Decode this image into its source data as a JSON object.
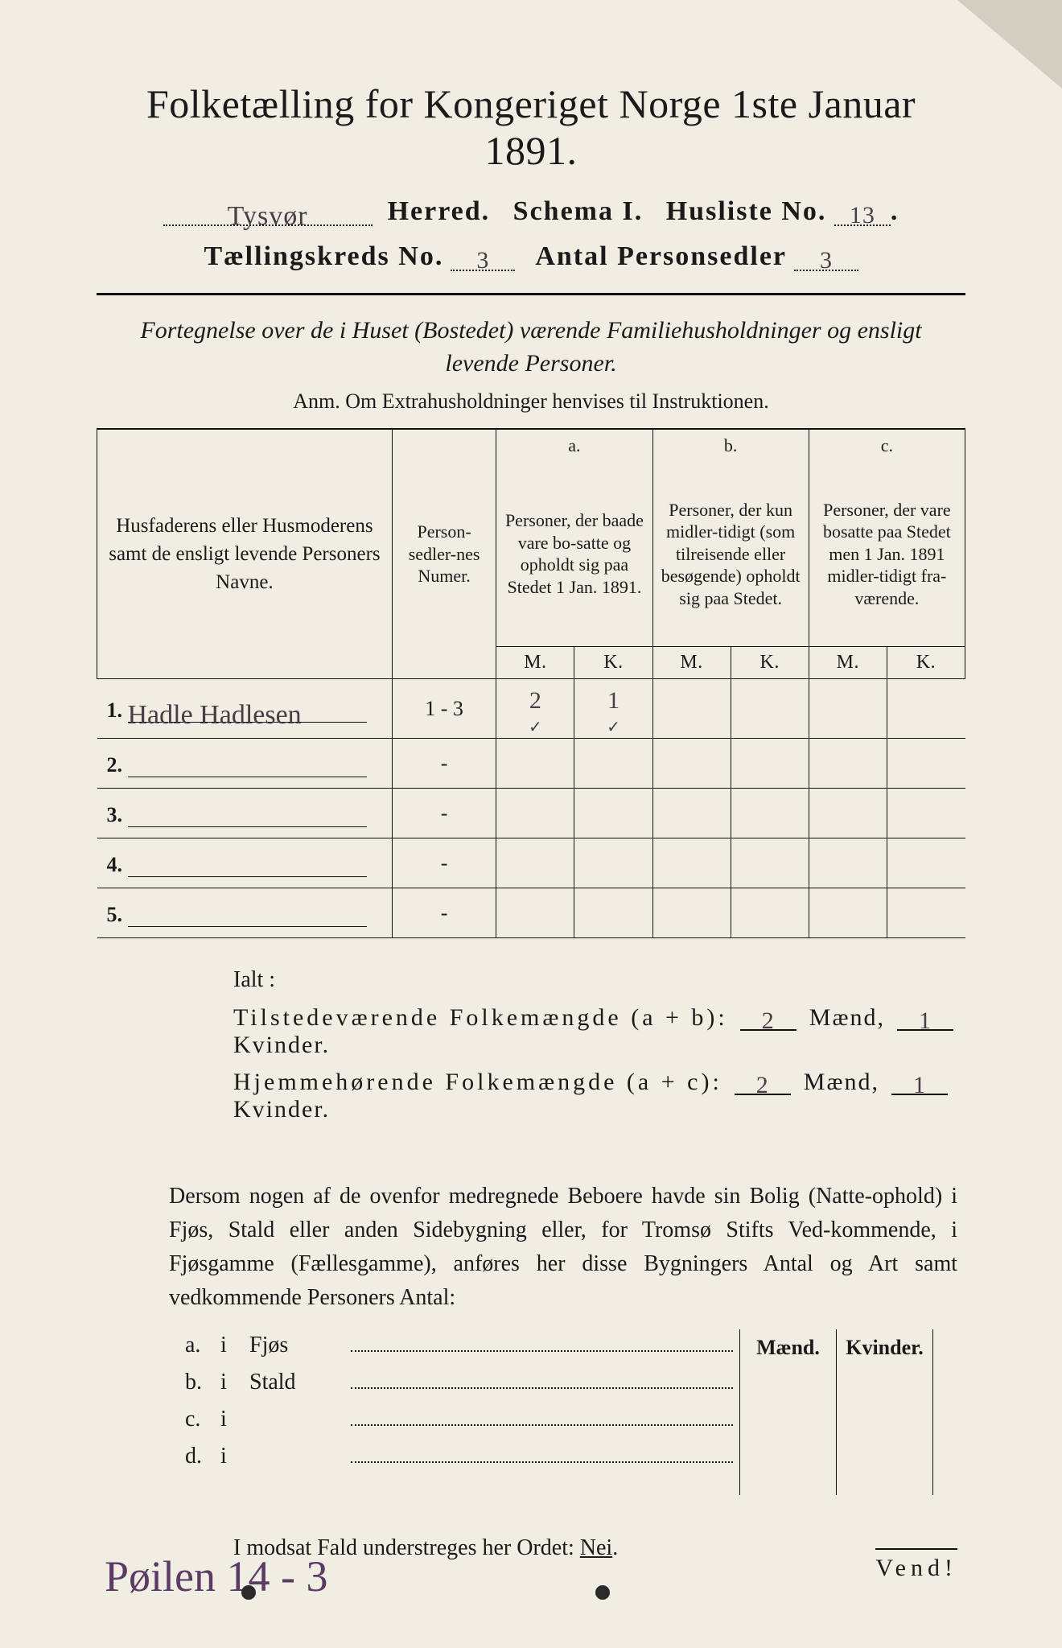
{
  "title": "Folketælling for Kongeriget Norge 1ste Januar 1891.",
  "line2": {
    "herred_hand": "Tysvør",
    "herred_label": "Herred.",
    "schema_label": "Schema I.",
    "husliste_label": "Husliste No.",
    "husliste_hand": "13",
    "dot": "."
  },
  "line3": {
    "kreds_label": "Tællingskreds No.",
    "kreds_hand": "3",
    "antal_label": "Antal Personsedler",
    "antal_hand": "3"
  },
  "fortegnelse": "Fortegnelse over de i Huset (Bostedet) værende Familiehusholdninger og ensligt levende Personer.",
  "anm": "Anm.  Om Extrahusholdninger henvises til Instruktionen.",
  "table": {
    "col_name": "Husfaderens eller Husmoderens samt de ensligt levende Personers Navne.",
    "col_num": "Person-sedler-nes Numer.",
    "col_a_top": "a.",
    "col_a": "Personer, der baade vare bo-satte og opholdt sig paa Stedet 1 Jan. 1891.",
    "col_b_top": "b.",
    "col_b": "Personer, der kun midler-tidigt (som tilreisende eller besøgende) opholdt sig paa Stedet.",
    "col_c_top": "c.",
    "col_c": "Personer, der vare bosatte paa Stedet men 1 Jan. 1891 midler-tidigt fra-værende.",
    "M": "M.",
    "K": "K.",
    "rows": [
      {
        "n": "1.",
        "name_hand": "Hadle Hadlesen",
        "num": "1 - 3",
        "aM": "2",
        "aK": "1",
        "bM": "",
        "bK": "",
        "cM": "",
        "cK": "",
        "aM2": "✓",
        "aK2": "✓"
      },
      {
        "n": "2.",
        "name_hand": "",
        "num": "-",
        "aM": "",
        "aK": "",
        "bM": "",
        "bK": "",
        "cM": "",
        "cK": ""
      },
      {
        "n": "3.",
        "name_hand": "",
        "num": "-",
        "aM": "",
        "aK": "",
        "bM": "",
        "bK": "",
        "cM": "",
        "cK": ""
      },
      {
        "n": "4.",
        "name_hand": "",
        "num": "-",
        "aM": "",
        "aK": "",
        "bM": "",
        "bK": "",
        "cM": "",
        "cK": ""
      },
      {
        "n": "5.",
        "name_hand": "",
        "num": "-",
        "aM": "",
        "aK": "",
        "bM": "",
        "bK": "",
        "cM": "",
        "cK": ""
      }
    ]
  },
  "ialt": {
    "label": "Ialt :",
    "tilstede_lbl": "Tilstedeværende Folkemængde (a + b):",
    "hjemme_lbl": "Hjemmehørende Folkemængde (a + c):",
    "maend": "Mænd,",
    "kvinder": "Kvinder.",
    "t_m": "2",
    "t_k": "1",
    "h_m": "2",
    "h_k": "1"
  },
  "para": "Dersom nogen af de ovenfor medregnede Beboere havde sin Bolig (Natte-ophold) i Fjøs, Stald eller anden Sidebygning eller, for Tromsø Stifts Ved-kommende, i Fjøsgamme (Fællesgamme), anføres her disse Bygningers Antal og Art samt vedkommende Personers Antal:",
  "bld": {
    "hdr_m": "Mænd.",
    "hdr_k": "Kvinder.",
    "rows": [
      {
        "idx": "a.",
        "i": "i",
        "type": "Fjøs"
      },
      {
        "idx": "b.",
        "i": "i",
        "type": "Stald"
      },
      {
        "idx": "c.",
        "i": "i",
        "type": ""
      },
      {
        "idx": "d.",
        "i": "i",
        "type": ""
      }
    ]
  },
  "nei_line_pre": "I modsat Fald understreges her Ordet: ",
  "nei": "Nei",
  "footer_hand": "Pøilen  14 - 3",
  "vend": "Vend!",
  "colors": {
    "paper": "#f0ede2",
    "ink": "#1a1a1a",
    "hand": "#4a3b46",
    "hand_purple": "#5b3a66"
  }
}
